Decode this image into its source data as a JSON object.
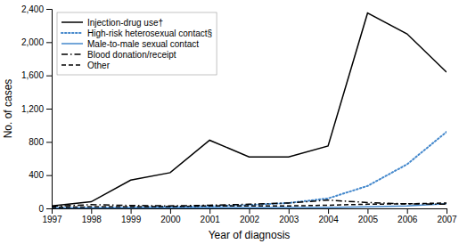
{
  "chart_data": {
    "type": "line",
    "x": [
      1997,
      1998,
      1999,
      2000,
      2001,
      2002,
      2003,
      2004,
      2005,
      2006,
      2007
    ],
    "series": [
      {
        "name": "Injection-drug use†",
        "color": "#000000",
        "line_style": "solid",
        "values": [
          30,
          80,
          340,
          430,
          820,
          620,
          620,
          750,
          2350,
          2100,
          1640
        ]
      },
      {
        "name": "High-risk heterosexual contact§",
        "color": "#4488cc",
        "line_style": "dotted",
        "values": [
          5,
          8,
          12,
          18,
          25,
          40,
          65,
          120,
          270,
          530,
          920
        ]
      },
      {
        "name": "Male-to-male sexual contact",
        "color": "#4488cc",
        "line_style": "solid",
        "values": [
          5,
          5,
          5,
          6,
          8,
          8,
          10,
          12,
          18,
          30,
          55
        ]
      },
      {
        "name": "Blood donation/receipt",
        "color": "#000000",
        "line_style": "dashdot",
        "values": [
          25,
          45,
          35,
          30,
          38,
          50,
          65,
          100,
          70,
          55,
          50
        ]
      },
      {
        "name": "Other",
        "color": "#000000",
        "line_style": "dashed",
        "values": [
          12,
          18,
          18,
          22,
          30,
          30,
          30,
          38,
          50,
          55,
          65
        ]
      }
    ],
    "xlim": [
      1997,
      2007
    ],
    "xticks": [
      1997,
      1998,
      1999,
      2000,
      2001,
      2002,
      2003,
      2004,
      2005,
      2006,
      2007
    ],
    "ylim": [
      0,
      2400
    ],
    "yticks": [
      0,
      400,
      800,
      {
        "value": 1200,
        "label": "1,200"
      },
      {
        "value": 1600,
        "label": "1,600"
      },
      {
        "value": 2000,
        "label": "2,000"
      },
      {
        "value": 2400,
        "label": "2,400"
      }
    ],
    "xlabel": "Year of diagnosis",
    "ylabel": "No. of cases",
    "legend": "upper-left",
    "grid": false
  }
}
